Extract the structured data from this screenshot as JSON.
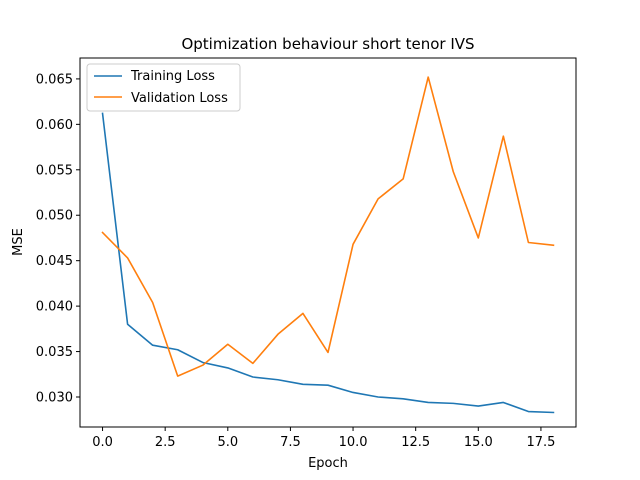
{
  "chart_data": {
    "type": "line",
    "title": "Optimization behaviour short tenor IVS",
    "xlabel": "Epoch",
    "ylabel": "MSE",
    "xlim": [
      -0.9,
      18.9
    ],
    "ylim": [
      0.0267,
      0.0673
    ],
    "xticks": [
      0.0,
      2.5,
      5.0,
      7.5,
      10.0,
      12.5,
      15.0,
      17.5
    ],
    "xtick_labels": [
      "0.0",
      "2.5",
      "5.0",
      "7.5",
      "10.0",
      "12.5",
      "15.0",
      "17.5"
    ],
    "yticks": [
      0.03,
      0.035,
      0.04,
      0.045,
      0.05,
      0.055,
      0.06,
      0.065
    ],
    "ytick_labels": [
      "0.030",
      "0.035",
      "0.040",
      "0.045",
      "0.050",
      "0.055",
      "0.060",
      "0.065"
    ],
    "grid": false,
    "legend": "top-left",
    "x": [
      0,
      1,
      2,
      3,
      4,
      5,
      6,
      7,
      8,
      9,
      10,
      11,
      12,
      13,
      14,
      15,
      16,
      17,
      18
    ],
    "series": [
      {
        "name": "Training Loss",
        "color": "#1f77b4",
        "values": [
          0.0612,
          0.038,
          0.0357,
          0.0352,
          0.0338,
          0.0332,
          0.0322,
          0.0319,
          0.0314,
          0.0313,
          0.0305,
          0.03,
          0.0298,
          0.0294,
          0.0293,
          0.029,
          0.0294,
          0.0284,
          0.0283
        ]
      },
      {
        "name": "Validation Loss",
        "color": "#ff7f0e",
        "values": [
          0.0481,
          0.0453,
          0.0404,
          0.0323,
          0.0335,
          0.0358,
          0.0337,
          0.0369,
          0.0392,
          0.0349,
          0.0468,
          0.0518,
          0.054,
          0.0652,
          0.0548,
          0.0475,
          0.0587,
          0.047,
          0.0467
        ]
      }
    ]
  }
}
